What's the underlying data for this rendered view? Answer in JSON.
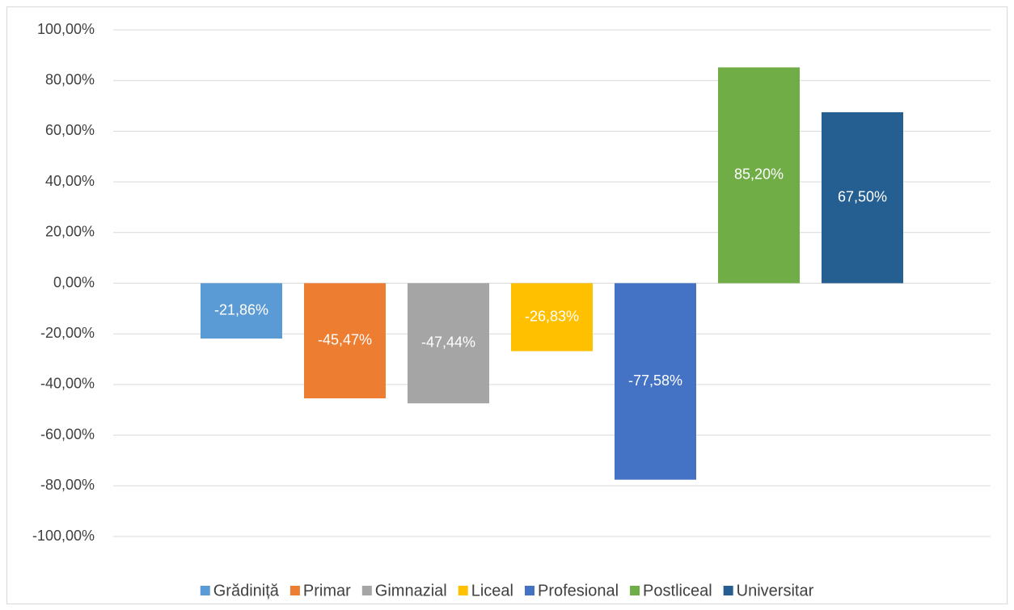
{
  "chart_data": {
    "type": "bar",
    "series": [
      {
        "name": "Grădiniță",
        "color": "#5b9bd5",
        "values": [
          -21.86
        ],
        "value_labels": [
          "-21,86%"
        ]
      },
      {
        "name": "Primar",
        "color": "#ed7d31",
        "values": [
          -45.47
        ],
        "value_labels": [
          "-45,47%"
        ]
      },
      {
        "name": "Gimnazial",
        "color": "#a5a5a5",
        "values": [
          -47.44
        ],
        "value_labels": [
          "-47,44%"
        ]
      },
      {
        "name": "Liceal",
        "color": "#ffc000",
        "values": [
          -26.83
        ],
        "value_labels": [
          "-26,83%"
        ]
      },
      {
        "name": "Profesional",
        "color": "#4472c4",
        "values": [
          -77.58
        ],
        "value_labels": [
          "-77,58%"
        ]
      },
      {
        "name": "Postliceal",
        "color": "#70ad47",
        "values": [
          85.2
        ],
        "value_labels": [
          "85,20%"
        ]
      },
      {
        "name": "Universitar",
        "color": "#255e91",
        "values": [
          67.5
        ],
        "value_labels": [
          "67,50%"
        ]
      }
    ],
    "ylim": [
      -100,
      100
    ],
    "yticks": [
      {
        "value": -100,
        "label": "-100,00%"
      },
      {
        "value": -80,
        "label": "-80,00%"
      },
      {
        "value": -60,
        "label": "-60,00%"
      },
      {
        "value": -40,
        "label": "-40,00%"
      },
      {
        "value": -20,
        "label": "-20,00%"
      },
      {
        "value": 0,
        "label": "0,00%"
      },
      {
        "value": 20,
        "label": "20,00%"
      },
      {
        "value": 40,
        "label": "40,00%"
      },
      {
        "value": 60,
        "label": "60,00%"
      },
      {
        "value": 80,
        "label": "80,00%"
      },
      {
        "value": 100,
        "label": "100,00%"
      }
    ],
    "grid": true,
    "legend": "bottom"
  }
}
